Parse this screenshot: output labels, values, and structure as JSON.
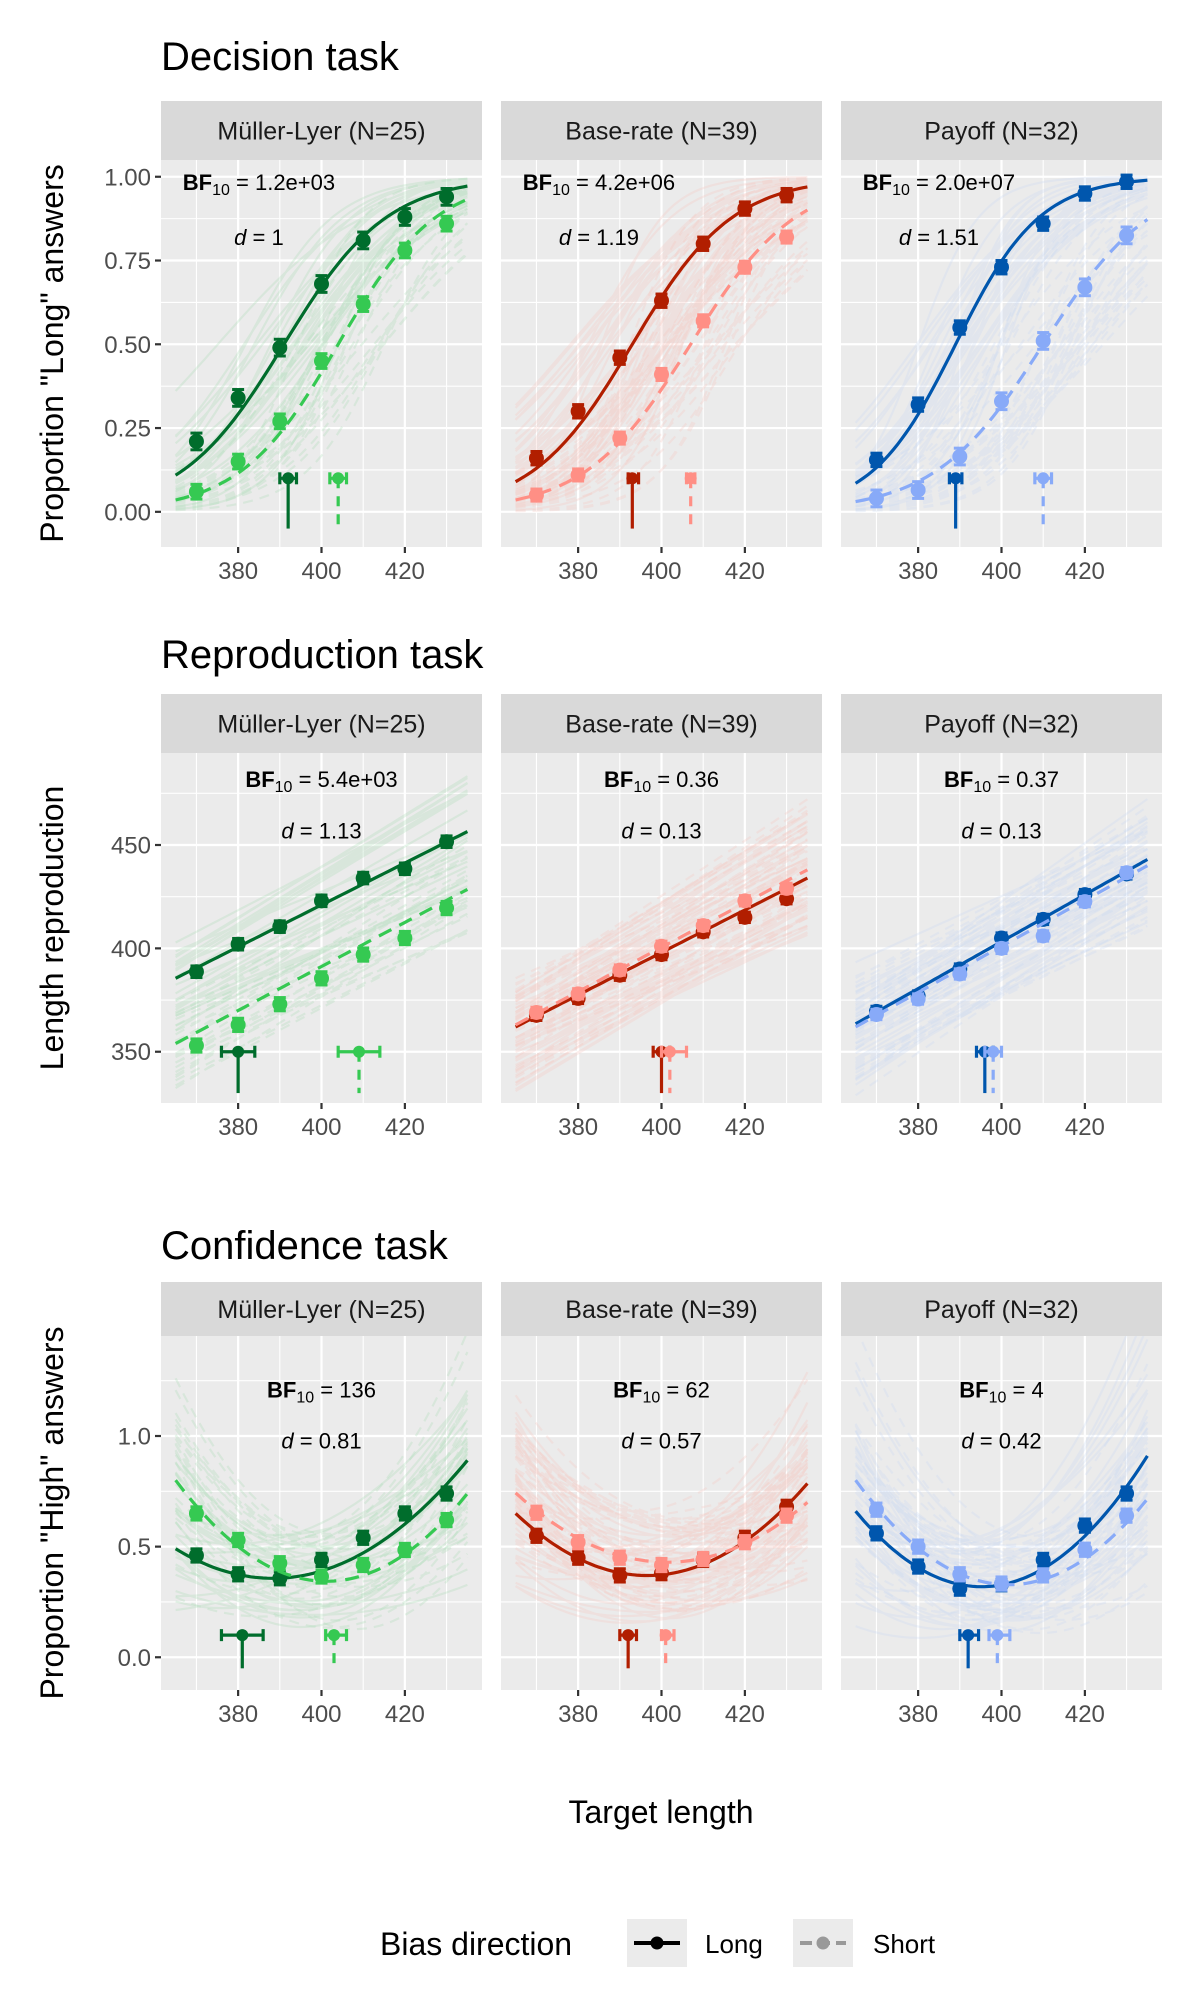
{
  "chart_data": {
    "type": "line",
    "xlabel": "Target length",
    "x": [
      370,
      380,
      390,
      400,
      410,
      420,
      430
    ],
    "x_ticks": [
      "380",
      "400",
      "420"
    ],
    "xlim": [
      361.5,
      438.5
    ],
    "legend": {
      "title": "Bias direction",
      "position": "bottom",
      "entries": [
        {
          "label": "Long",
          "style": "solid",
          "color": "#000000"
        },
        {
          "label": "Short",
          "style": "dashed",
          "color": "#999999"
        }
      ]
    },
    "conditions": [
      {
        "label": "Müller-Lyer (N=25)",
        "colors": {
          "Long": "#006d2c",
          "Short": "#35c952",
          "Long_faint": "#a8dcb4",
          "Short_faint": "#a8dcb4"
        }
      },
      {
        "label": "Base-rate (N=39)",
        "colors": {
          "Long": "#b11e00",
          "Short": "#ff8f85",
          "Long_faint": "#f6c4bd",
          "Short_faint": "#f6c4bd"
        }
      },
      {
        "label": "Payoff (N=32)",
        "colors": {
          "Long": "#0056ad",
          "Short": "#88aaf8",
          "Long_faint": "#c8d8f4",
          "Short_faint": "#c8d8f4"
        }
      }
    ],
    "rows": [
      {
        "title": "Decision task",
        "ylabel": "Proportion \"Long\" answers",
        "ylim": [
          -0.105,
          1.05
        ],
        "y_ticks": [
          0,
          0.25,
          0.5,
          0.75,
          1.0
        ],
        "y_tick_labels": [
          "0.00",
          "0.25",
          "0.50",
          "0.75",
          "1.00"
        ],
        "fit": "logistic",
        "annot_align": "left",
        "annot_pos": {
          "x": 385,
          "bf_y": 0.985,
          "d_y": 0.82
        },
        "pse_y": 0.1,
        "pse_drop": -0.05,
        "panels": [
          {
            "bf": "1.2e+03",
            "d": "1",
            "series": [
              {
                "name": "Long",
                "values": [
                  0.21,
                  0.34,
                  0.49,
                  0.68,
                  0.81,
                  0.88,
                  0.94
                ],
                "se": 0.025,
                "fit": {
                  "mu": 391,
                  "s": 12.4
                },
                "pse": {
                  "x": 392,
                  "lo": 390,
                  "hi": 394
                }
              },
              {
                "name": "Short",
                "values": [
                  0.06,
                  0.15,
                  0.27,
                  0.45,
                  0.62,
                  0.78,
                  0.86
                ],
                "se": 0.022,
                "fit": {
                  "mu": 404,
                  "s": 11.8
                },
                "pse": {
                  "x": 404,
                  "lo": 402,
                  "hi": 406
                }
              }
            ]
          },
          {
            "bf": "4.2e+06",
            "d": "1.19",
            "series": [
              {
                "name": "Long",
                "values": [
                  0.16,
                  0.3,
                  0.46,
                  0.63,
                  0.8,
                  0.905,
                  0.945
                ],
                "se": 0.02,
                "fit": {
                  "mu": 393,
                  "s": 12.1
                },
                "pse": {
                  "x": 393,
                  "lo": 392,
                  "hi": 394.5
                }
              },
              {
                "name": "Short",
                "values": [
                  0.05,
                  0.11,
                  0.22,
                  0.41,
                  0.57,
                  0.73,
                  0.82
                ],
                "se": 0.018,
                "fit": {
                  "mu": 407,
                  "s": 12.7
                },
                "pse": {
                  "x": 407,
                  "lo": 406,
                  "hi": 408
                }
              }
            ]
          },
          {
            "bf": "2.0e+07",
            "d": "1.51",
            "series": [
              {
                "name": "Long",
                "values": [
                  0.155,
                  0.32,
                  0.55,
                  0.73,
                  0.86,
                  0.95,
                  0.985
                ],
                "se": 0.02,
                "fit": {
                  "mu": 389,
                  "s": 10.1
                },
                "pse": {
                  "x": 389,
                  "lo": 387.5,
                  "hi": 390.5
                }
              },
              {
                "name": "Short",
                "values": [
                  0.04,
                  0.065,
                  0.165,
                  0.33,
                  0.51,
                  0.67,
                  0.825
                ],
                "se": 0.025,
                "fit": {
                  "mu": 410,
                  "s": 13
                },
                "pse": {
                  "x": 410,
                  "lo": 408,
                  "hi": 412
                }
              }
            ]
          }
        ]
      },
      {
        "title": "Reproduction task",
        "ylabel": "Length reproduction",
        "ylim": [
          325.2,
          494.5
        ],
        "y_ticks": [
          350,
          400,
          450
        ],
        "y_tick_labels": [
          "350",
          "400",
          "450"
        ],
        "fit": "linear",
        "annot_align": "center",
        "annot_pos": {
          "x": 400,
          "bf_y": 482,
          "d_y": 457
        },
        "pse_y": 350,
        "pse_drop": 330,
        "panels": [
          {
            "bf": "5.4e+03",
            "d": "1.13",
            "series": [
              {
                "name": "Long",
                "values": [
                  388.7,
                  402,
                  410.5,
                  423,
                  434,
                  438.5,
                  451.6
                ],
                "se": 2.8,
                "fit": {
                  "y0": 385.5,
                  "y1": 456.5
                },
                "pse": {
                  "x": 380,
                  "lo": 376,
                  "hi": 384
                }
              },
              {
                "name": "Short",
                "values": [
                  353,
                  363,
                  373,
                  385.5,
                  397,
                  405,
                  419.5
                ],
                "se": 3.2,
                "fit": {
                  "y0": 354,
                  "y1": 428.5
                },
                "pse": {
                  "x": 409,
                  "lo": 404,
                  "hi": 414
                }
              }
            ]
          },
          {
            "bf": "0.36",
            "d": "0.13",
            "series": [
              {
                "name": "Long",
                "values": [
                  367.6,
                  375.8,
                  387,
                  397,
                  408,
                  415,
                  424
                ],
                "se": 2.5,
                "fit": {
                  "y0": 362,
                  "y1": 434
                },
                "pse": {
                  "x": 400,
                  "lo": 398,
                  "hi": 402
                }
              },
              {
                "name": "Short",
                "values": [
                  369,
                  378,
                  389.5,
                  401,
                  411,
                  423,
                  429
                ],
                "se": 2.5,
                "fit": {
                  "y0": 363,
                  "y1": 438
                },
                "pse": {
                  "x": 402,
                  "lo": 400,
                  "hi": 406
                }
              }
            ]
          },
          {
            "bf": "0.37",
            "d": "0.13",
            "series": [
              {
                "name": "Long",
                "values": [
                  369.5,
                  377,
                  390,
                  405,
                  414,
                  426,
                  436
                ],
                "se": 2.5,
                "fit": {
                  "y0": 363.5,
                  "y1": 443
                },
                "pse": {
                  "x": 396,
                  "lo": 394,
                  "hi": 398
                }
              },
              {
                "name": "Short",
                "values": [
                  368,
                  375.5,
                  387.6,
                  400,
                  406,
                  422.6,
                  436.6
                ],
                "se": 2.5,
                "fit": {
                  "y0": 362,
                  "y1": 440
                },
                "pse": {
                  "x": 398,
                  "lo": 396,
                  "hi": 400
                }
              }
            ]
          }
        ]
      },
      {
        "title": "Confidence task",
        "ylabel": "Proportion \"High\" answers",
        "ylim": [
          -0.148,
          1.452
        ],
        "y_ticks": [
          0,
          0.5,
          1.0
        ],
        "y_tick_labels": [
          "0.0",
          "0.5",
          "1.0"
        ],
        "fit": "quadratic",
        "annot_align": "center",
        "annot_pos": {
          "x": 400,
          "bf_y": 1.21,
          "d_y": 0.98
        },
        "pse_y": 0.1,
        "pse_drop": -0.05,
        "panels": [
          {
            "bf": "136",
            "d": "0.81",
            "series": [
              {
                "name": "Long",
                "values": [
                  0.46,
                  0.375,
                  0.357,
                  0.44,
                  0.54,
                  0.65,
                  0.74
                ],
                "se": 0.03,
                "fit": {
                  "c": 0.39,
                  "b": 0.00571,
                  "a": 0.000245
                },
                "pse": {
                  "x": 381,
                  "lo": 376,
                  "hi": 386
                }
              },
              {
                "name": "Short",
                "values": [
                  0.65,
                  0.53,
                  0.425,
                  0.365,
                  0.417,
                  0.485,
                  0.62
                ],
                "se": 0.03,
                "fit": {
                  "c": 0.344,
                  "b": -0.000857,
                  "a": 0.000348
                },
                "pse": {
                  "x": 403,
                  "lo": 401,
                  "hi": 406
                }
              }
            ]
          },
          {
            "bf": "62",
            "d": "0.57",
            "series": [
              {
                "name": "Long",
                "values": [
                  0.549,
                  0.45,
                  0.37,
                  0.38,
                  0.44,
                  0.54,
                  0.68
                ],
                "se": 0.03,
                "fit": {
                  "c": 0.3728,
                  "b": 0.00193,
                  "a": 0.0002816
                },
                "pse": {
                  "x": 392,
                  "lo": 390,
                  "hi": 394
                }
              },
              {
                "name": "Short",
                "values": [
                  0.653,
                  0.52,
                  0.45,
                  0.417,
                  0.444,
                  0.52,
                  0.64
                ],
                "se": 0.03,
                "fit": {
                  "c": 0.43,
                  "b": -0.000614,
                  "a": 0.000238
                },
                "pse": {
                  "x": 401,
                  "lo": 400,
                  "hi": 403
                }
              }
            ]
          },
          {
            "bf": "4",
            "d": "0.42",
            "series": [
              {
                "name": "Long",
                "values": [
                  0.56,
                  0.41,
                  0.31,
                  0.33,
                  0.44,
                  0.595,
                  0.74
                ],
                "se": 0.03,
                "fit": {
                  "c": 0.3274,
                  "b": 0.00357,
                  "a": 0.0003736
                },
                "pse": {
                  "x": 392,
                  "lo": 390,
                  "hi": 394.5
                }
              },
              {
                "name": "Short",
                "values": [
                  0.667,
                  0.5,
                  0.375,
                  0.333,
                  0.37,
                  0.486,
                  0.64
                ],
                "se": 0.03,
                "fit": {
                  "c": 0.329,
                  "b": -0.00121,
                  "a": 0.00035
                },
                "pse": {
                  "x": 399,
                  "lo": 397,
                  "hi": 402
                }
              }
            ]
          }
        ]
      }
    ]
  }
}
